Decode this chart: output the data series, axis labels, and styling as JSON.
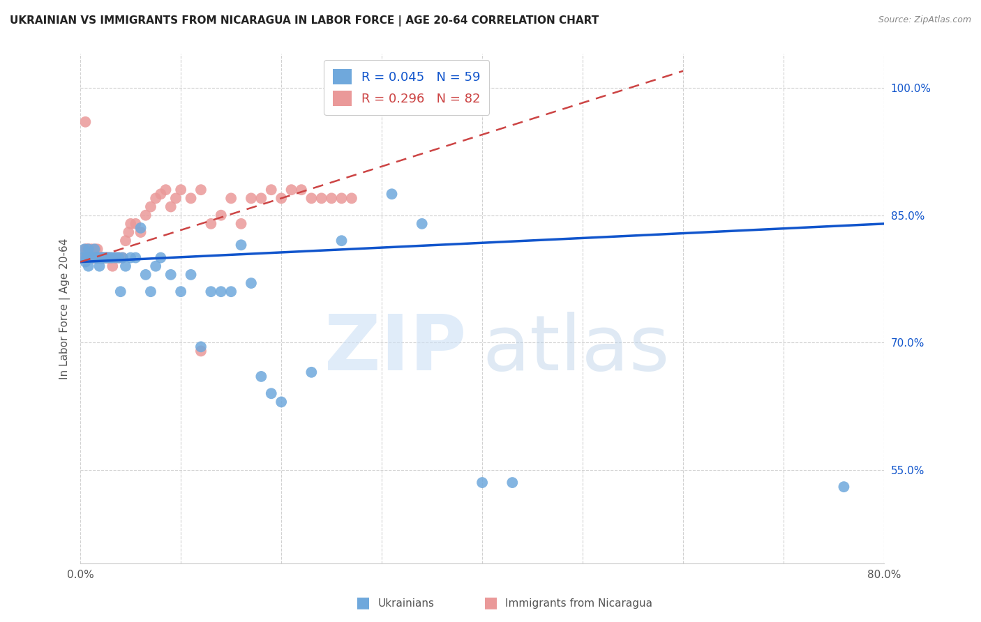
{
  "title": "UKRAINIAN VS IMMIGRANTS FROM NICARAGUA IN LABOR FORCE | AGE 20-64 CORRELATION CHART",
  "source": "Source: ZipAtlas.com",
  "ylabel": "In Labor Force | Age 20-64",
  "xlim": [
    0.0,
    0.8
  ],
  "ylim": [
    0.44,
    1.04
  ],
  "legend_blue_r": "0.045",
  "legend_blue_n": "59",
  "legend_pink_r": "0.296",
  "legend_pink_n": "82",
  "blue_color": "#6fa8dc",
  "pink_color": "#ea9999",
  "blue_line_color": "#1155cc",
  "pink_line_color": "#cc4444",
  "blue_line_x0": 0.0,
  "blue_line_y0": 0.795,
  "blue_line_x1": 0.8,
  "blue_line_y1": 0.84,
  "pink_line_x0": 0.0,
  "pink_line_y0": 0.795,
  "pink_line_x1": 0.6,
  "pink_line_y1": 1.02,
  "blue_points_x": [
    0.002,
    0.004,
    0.005,
    0.006,
    0.007,
    0.008,
    0.008,
    0.009,
    0.01,
    0.011,
    0.012,
    0.013,
    0.014,
    0.015,
    0.015,
    0.016,
    0.017,
    0.018,
    0.019,
    0.02,
    0.021,
    0.022,
    0.023,
    0.025,
    0.026,
    0.028,
    0.03,
    0.032,
    0.035,
    0.038,
    0.04,
    0.042,
    0.045,
    0.05,
    0.055,
    0.06,
    0.065,
    0.07,
    0.075,
    0.08,
    0.09,
    0.1,
    0.11,
    0.12,
    0.13,
    0.14,
    0.15,
    0.16,
    0.17,
    0.18,
    0.19,
    0.2,
    0.23,
    0.26,
    0.31,
    0.34,
    0.4,
    0.43,
    0.76
  ],
  "blue_points_y": [
    0.8,
    0.81,
    0.795,
    0.8,
    0.8,
    0.81,
    0.79,
    0.8,
    0.8,
    0.8,
    0.8,
    0.8,
    0.81,
    0.8,
    0.8,
    0.8,
    0.8,
    0.8,
    0.79,
    0.8,
    0.8,
    0.8,
    0.8,
    0.8,
    0.8,
    0.8,
    0.8,
    0.8,
    0.8,
    0.8,
    0.76,
    0.8,
    0.79,
    0.8,
    0.8,
    0.835,
    0.78,
    0.76,
    0.79,
    0.8,
    0.78,
    0.76,
    0.78,
    0.695,
    0.76,
    0.76,
    0.76,
    0.815,
    0.77,
    0.66,
    0.64,
    0.63,
    0.665,
    0.82,
    0.875,
    0.84,
    0.535,
    0.535,
    0.53
  ],
  "pink_points_x": [
    0.002,
    0.003,
    0.004,
    0.005,
    0.005,
    0.006,
    0.006,
    0.007,
    0.007,
    0.008,
    0.008,
    0.009,
    0.009,
    0.01,
    0.01,
    0.011,
    0.011,
    0.012,
    0.012,
    0.013,
    0.013,
    0.014,
    0.014,
    0.015,
    0.015,
    0.016,
    0.016,
    0.017,
    0.017,
    0.018,
    0.018,
    0.019,
    0.019,
    0.02,
    0.02,
    0.021,
    0.022,
    0.023,
    0.024,
    0.025,
    0.026,
    0.027,
    0.028,
    0.03,
    0.032,
    0.034,
    0.036,
    0.038,
    0.04,
    0.042,
    0.045,
    0.048,
    0.05,
    0.055,
    0.06,
    0.065,
    0.07,
    0.075,
    0.08,
    0.085,
    0.09,
    0.095,
    0.1,
    0.11,
    0.12,
    0.13,
    0.14,
    0.15,
    0.16,
    0.17,
    0.18,
    0.19,
    0.2,
    0.21,
    0.22,
    0.23,
    0.24,
    0.25,
    0.26,
    0.27,
    0.005,
    0.12
  ],
  "pink_points_y": [
    0.8,
    0.8,
    0.8,
    0.8,
    0.81,
    0.8,
    0.81,
    0.8,
    0.81,
    0.8,
    0.81,
    0.8,
    0.8,
    0.8,
    0.81,
    0.8,
    0.8,
    0.8,
    0.81,
    0.8,
    0.8,
    0.8,
    0.8,
    0.8,
    0.81,
    0.8,
    0.8,
    0.8,
    0.81,
    0.8,
    0.8,
    0.8,
    0.8,
    0.8,
    0.8,
    0.8,
    0.8,
    0.8,
    0.8,
    0.8,
    0.8,
    0.8,
    0.8,
    0.8,
    0.79,
    0.8,
    0.8,
    0.8,
    0.8,
    0.8,
    0.82,
    0.83,
    0.84,
    0.84,
    0.83,
    0.85,
    0.86,
    0.87,
    0.875,
    0.88,
    0.86,
    0.87,
    0.88,
    0.87,
    0.88,
    0.84,
    0.85,
    0.87,
    0.84,
    0.87,
    0.87,
    0.88,
    0.87,
    0.88,
    0.88,
    0.87,
    0.87,
    0.87,
    0.87,
    0.87,
    0.96,
    0.69
  ]
}
